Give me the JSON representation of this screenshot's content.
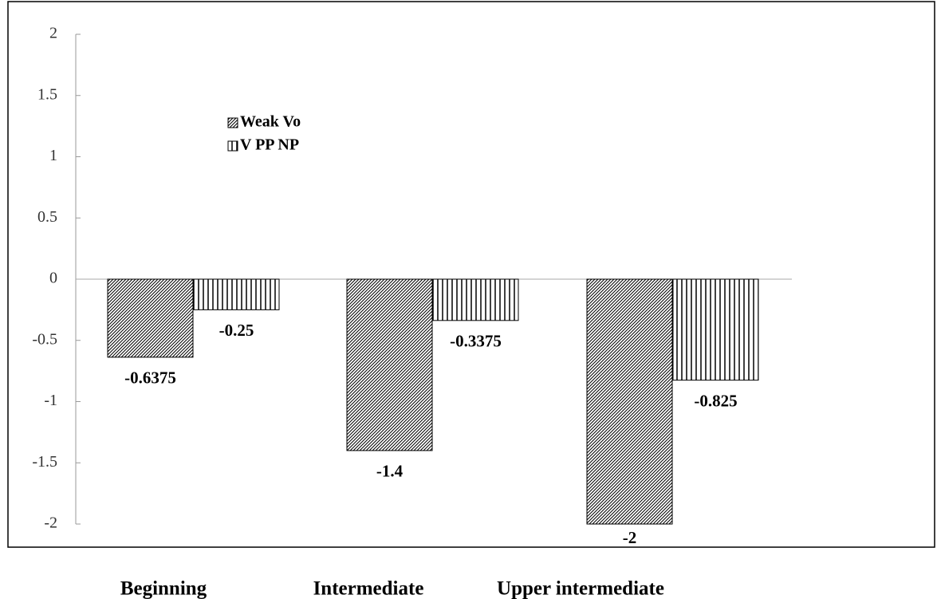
{
  "chart_data": {
    "type": "bar",
    "categories": [
      "Beginning",
      "Intermediate",
      "Upper intermediate"
    ],
    "series": [
      {
        "name": "Weak Vo",
        "color": "#000000",
        "values": [
          -0.6375,
          -1.4,
          -2
        ]
      },
      {
        "name": "V PP NP",
        "color": "#000000",
        "values": [
          -0.25,
          -0.3375,
          -0.825
        ]
      }
    ],
    "ylim": [
      -2,
      2
    ],
    "yticks": [
      -2,
      -1.5,
      -1,
      -0.5,
      0,
      0.5,
      1,
      1.5,
      2
    ],
    "grid": false
  }
}
